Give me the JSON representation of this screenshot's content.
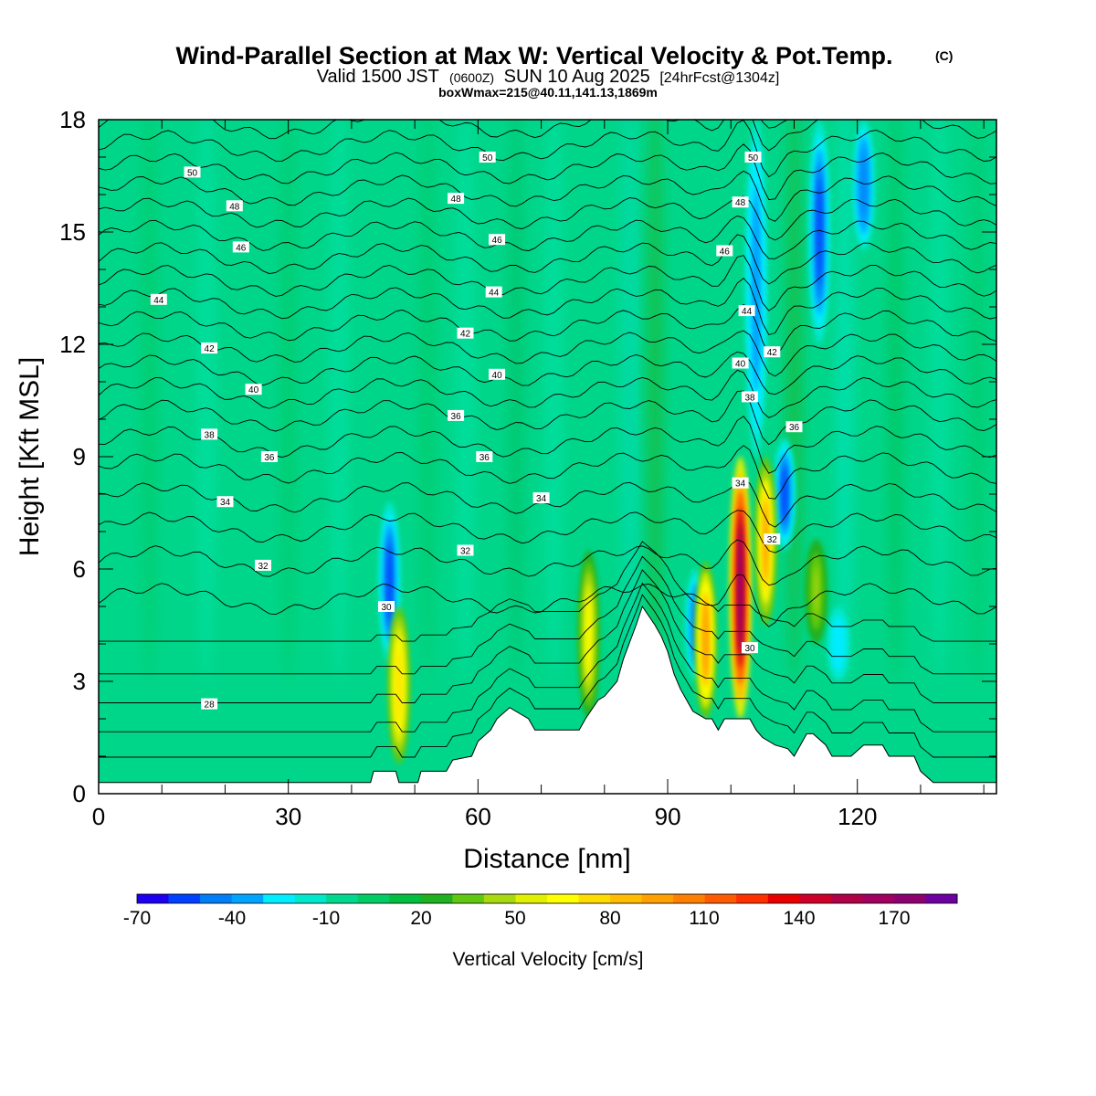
{
  "chart_data": {
    "type": "heatmap",
    "title": "Wind-Parallel Section at Max W: Vertical Velocity & Pot.Temp.",
    "title_mark": "(C)",
    "subtitle": {
      "valid": "Valid 1500 JST",
      "zulu": "(0600Z)",
      "date": "SUN 10 Aug 2025",
      "fcst": "[24hrFcst@1304z]"
    },
    "box_info": "boxWmax=215@40.11,141.13,1869m",
    "xlabel": "Distance [nm]",
    "ylabel": "Height [Kft MSL]",
    "xlim": [
      0,
      142
    ],
    "ylim": [
      0,
      18
    ],
    "x_ticks": [
      "0",
      "30",
      "60",
      "90",
      "120"
    ],
    "y_ticks": [
      "0",
      "3",
      "6",
      "9",
      "12",
      "15",
      "18"
    ],
    "colorbar": {
      "label": "Vertical Velocity [cm/s]",
      "tick_labels": [
        "-70",
        "-40",
        "-10",
        "20",
        "50",
        "80",
        "110",
        "140",
        "170"
      ],
      "range": [
        -70,
        190
      ],
      "step": 10,
      "colors": [
        "#1e00f0",
        "#0040ff",
        "#007ef8",
        "#00a4ff",
        "#00ecff",
        "#00e8cc",
        "#00d890",
        "#00cc66",
        "#00bf40",
        "#20b020",
        "#60c810",
        "#a8d810",
        "#e0f000",
        "#ffff00",
        "#ffdc00",
        "#ffbc00",
        "#ffa000",
        "#ff8000",
        "#ff5a00",
        "#ff3000",
        "#e80000",
        "#cc0028",
        "#b00048",
        "#a00060",
        "#8c0070",
        "#6c00a0"
      ]
    },
    "updraft_cores": [
      {
        "x": 47.5,
        "z_bottom": 0.8,
        "z_top": 5.0,
        "w": 75
      },
      {
        "x": 77.5,
        "z_bottom": 2.0,
        "z_top": 6.5,
        "w": 60
      },
      {
        "x": 96,
        "z_bottom": 2.0,
        "z_top": 6.2,
        "w": 95
      },
      {
        "x": 101.5,
        "z_bottom": 2.0,
        "z_top": 9.0,
        "w": 175
      },
      {
        "x": 105.5,
        "z_bottom": 4.5,
        "z_top": 9.0,
        "w": 90
      },
      {
        "x": 113.5,
        "z_bottom": 4.0,
        "z_top": 6.8,
        "w": 40
      }
    ],
    "downdraft_cores": [
      {
        "x": 46,
        "z_bottom": 3.5,
        "z_top": 7.8,
        "w": -55
      },
      {
        "x": 94.5,
        "z_bottom": 3.0,
        "z_top": 6.0,
        "w": -45
      },
      {
        "x": 104,
        "z_bottom": 9.0,
        "z_top": 18.0,
        "w": -40
      },
      {
        "x": 108.5,
        "z_bottom": 6.5,
        "z_top": 9.5,
        "w": -55
      },
      {
        "x": 114,
        "z_bottom": 12.0,
        "z_top": 18.0,
        "w": -55
      },
      {
        "x": 121,
        "z_bottom": 14.5,
        "z_top": 18.0,
        "w": -45
      },
      {
        "x": 117,
        "z_bottom": 3.0,
        "z_top": 5.0,
        "w": -30
      }
    ],
    "terrain_kft": {
      "x": [
        0,
        43,
        43.5,
        47,
        47.5,
        50.5,
        51,
        55,
        56,
        59,
        60,
        62,
        63,
        65,
        68,
        69,
        76,
        77,
        79,
        80,
        82,
        83,
        85,
        86,
        88,
        89,
        90,
        91,
        92,
        93,
        94,
        96,
        97,
        98,
        99,
        100,
        103,
        104,
        105,
        107,
        109,
        110,
        111,
        112,
        113,
        115,
        116,
        119,
        121,
        124,
        125,
        129,
        130,
        132,
        133,
        142
      ],
      "z": [
        0.3,
        0.3,
        0.6,
        0.6,
        0.3,
        0.3,
        0.6,
        0.6,
        0.9,
        1.0,
        1.4,
        1.7,
        2.0,
        2.3,
        2.0,
        1.7,
        1.7,
        2.0,
        2.5,
        2.6,
        3.0,
        3.6,
        4.5,
        5.0,
        4.5,
        4.2,
        3.8,
        3.2,
        2.8,
        2.5,
        2.2,
        2.0,
        2.0,
        1.7,
        2.0,
        2.0,
        2.0,
        1.7,
        1.5,
        1.3,
        1.2,
        1.0,
        1.3,
        1.6,
        1.6,
        1.3,
        1.0,
        1.0,
        1.3,
        1.3,
        1.0,
        1.0,
        0.6,
        0.3,
        0.3,
        0.3
      ]
    },
    "theta_levels": [
      26,
      27,
      28,
      29,
      30,
      31,
      32,
      33,
      34,
      35,
      36,
      37,
      38,
      39,
      40,
      41,
      42,
      43,
      44,
      45,
      46,
      47,
      48,
      49,
      50,
      51
    ],
    "theta_base_height_kft": [
      1.0,
      1.7,
      2.5,
      3.3,
      4.2,
      5.2,
      6.2,
      7.1,
      7.9,
      8.7,
      9.4,
      10.1,
      10.7,
      11.3,
      11.9,
      12.5,
      13.1,
      13.7,
      14.3,
      14.9,
      15.5,
      16.1,
      16.7,
      17.3,
      17.9,
      18.4
    ],
    "theta_labels": [
      {
        "text": "50",
        "x": 14.8,
        "z": 16.6
      },
      {
        "text": "48",
        "x": 21.5,
        "z": 15.7
      },
      {
        "text": "46",
        "x": 22.5,
        "z": 14.6
      },
      {
        "text": "44",
        "x": 9.5,
        "z": 13.2
      },
      {
        "text": "42",
        "x": 17.5,
        "z": 11.9
      },
      {
        "text": "40",
        "x": 24.5,
        "z": 10.8
      },
      {
        "text": "38",
        "x": 17.5,
        "z": 9.6
      },
      {
        "text": "36",
        "x": 27,
        "z": 9.0
      },
      {
        "text": "34",
        "x": 20,
        "z": 7.8
      },
      {
        "text": "32",
        "x": 26,
        "z": 6.1
      },
      {
        "text": "28",
        "x": 17.5,
        "z": 2.4
      },
      {
        "text": "50",
        "x": 61.5,
        "z": 17.0
      },
      {
        "text": "48",
        "x": 56.5,
        "z": 15.9
      },
      {
        "text": "46",
        "x": 63,
        "z": 14.8
      },
      {
        "text": "44",
        "x": 62.5,
        "z": 13.4
      },
      {
        "text": "42",
        "x": 58,
        "z": 12.3
      },
      {
        "text": "40",
        "x": 63,
        "z": 11.2
      },
      {
        "text": "36",
        "x": 56.5,
        "z": 10.1
      },
      {
        "text": "36",
        "x": 61,
        "z": 9.0
      },
      {
        "text": "34",
        "x": 70,
        "z": 7.9
      },
      {
        "text": "32",
        "x": 58,
        "z": 6.5
      },
      {
        "text": "30",
        "x": 45.5,
        "z": 5.0
      },
      {
        "text": "50",
        "x": 103.5,
        "z": 17.0
      },
      {
        "text": "48",
        "x": 101.5,
        "z": 15.8
      },
      {
        "text": "46",
        "x": 99,
        "z": 14.5
      },
      {
        "text": "44",
        "x": 102.5,
        "z": 12.9
      },
      {
        "text": "42",
        "x": 106.5,
        "z": 11.8
      },
      {
        "text": "40",
        "x": 101.5,
        "z": 11.5
      },
      {
        "text": "38",
        "x": 103,
        "z": 10.6
      },
      {
        "text": "36",
        "x": 110,
        "z": 9.8
      },
      {
        "text": "34",
        "x": 101.5,
        "z": 8.3
      },
      {
        "text": "32",
        "x": 106.5,
        "z": 6.8
      },
      {
        "text": "30",
        "x": 103,
        "z": 3.9
      }
    ]
  }
}
